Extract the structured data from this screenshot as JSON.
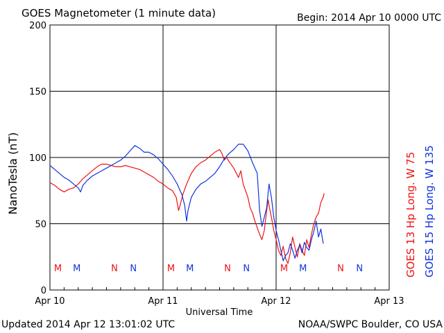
{
  "header": {
    "title": "GOES Magnetometer (1 minute data)",
    "begin": "Begin:  2014 Apr 10 0000 UTC"
  },
  "footer": {
    "updated": "Updated 2014 Apr 12 13:01:02 UTC",
    "credit": "NOAA/SWPC Boulder, CO USA"
  },
  "colors": {
    "goes13": "#ee1111",
    "goes15": "#1133dd",
    "grid": "#000000"
  },
  "chart_data": {
    "type": "line",
    "ylabel": "NanoTesla (nT)",
    "xlabel": "Universal Time",
    "ylim": [
      0,
      200
    ],
    "yticks": [
      0,
      50,
      100,
      150,
      200
    ],
    "xlim": [
      0,
      72
    ],
    "xticks": [
      {
        "x": 0,
        "label": "Apr 10"
      },
      {
        "x": 24,
        "label": "Apr 11"
      },
      {
        "x": 48,
        "label": "Apr 12"
      },
      {
        "x": 72,
        "label": "Apr 13"
      }
    ],
    "grid": true,
    "legend": "right-vertical",
    "series": [
      {
        "name": "GOES 13 Hp",
        "suffix": "Long. W 75",
        "color": "#ee1111",
        "points": [
          [
            0.0,
            81
          ],
          [
            1.0,
            79
          ],
          [
            2.0,
            76
          ],
          [
            3.0,
            74
          ],
          [
            4.0,
            76
          ],
          [
            5.0,
            77
          ],
          [
            6.0,
            80
          ],
          [
            7.0,
            84
          ],
          [
            8.0,
            87
          ],
          [
            9.0,
            90
          ],
          [
            10.0,
            93
          ],
          [
            11.0,
            95
          ],
          [
            12.0,
            95
          ],
          [
            13.0,
            94
          ],
          [
            14.0,
            93
          ],
          [
            15.0,
            93
          ],
          [
            16.0,
            94
          ],
          [
            17.0,
            93
          ],
          [
            18.0,
            92
          ],
          [
            19.0,
            91
          ],
          [
            20.0,
            89
          ],
          [
            21.0,
            87
          ],
          [
            22.0,
            85
          ],
          [
            23.0,
            82
          ],
          [
            24.0,
            80
          ],
          [
            25.0,
            77
          ],
          [
            26.0,
            75
          ],
          [
            26.8,
            70
          ],
          [
            27.3,
            60
          ],
          [
            27.7,
            65
          ],
          [
            28.2,
            72
          ],
          [
            29.0,
            80
          ],
          [
            30.0,
            88
          ],
          [
            31.0,
            93
          ],
          [
            32.0,
            96
          ],
          [
            33.0,
            98
          ],
          [
            34.0,
            101
          ],
          [
            35.0,
            104
          ],
          [
            36.0,
            106
          ],
          [
            36.5,
            103
          ],
          [
            37.0,
            98
          ],
          [
            37.5,
            100
          ],
          [
            38.0,
            97
          ],
          [
            39.0,
            92
          ],
          [
            40.0,
            85
          ],
          [
            40.5,
            90
          ],
          [
            41.0,
            80
          ],
          [
            42.0,
            70
          ],
          [
            42.5,
            62
          ],
          [
            43.0,
            58
          ],
          [
            43.5,
            52
          ],
          [
            44.0,
            47
          ],
          [
            44.5,
            42
          ],
          [
            45.0,
            38
          ],
          [
            45.5,
            45
          ],
          [
            46.0,
            60
          ],
          [
            46.3,
            68
          ],
          [
            46.6,
            62
          ],
          [
            47.0,
            55
          ],
          [
            47.5,
            45
          ],
          [
            48.0,
            38
          ],
          [
            48.5,
            30
          ],
          [
            49.0,
            26
          ],
          [
            49.5,
            33
          ],
          [
            50.0,
            24
          ],
          [
            50.5,
            20
          ],
          [
            51.0,
            28
          ],
          [
            51.5,
            40
          ],
          [
            52.0,
            32
          ],
          [
            52.5,
            25
          ],
          [
            53.0,
            35
          ],
          [
            53.5,
            30
          ],
          [
            54.0,
            26
          ],
          [
            54.5,
            38
          ],
          [
            55.0,
            32
          ],
          [
            55.5,
            42
          ],
          [
            56.0,
            50
          ],
          [
            56.5,
            55
          ],
          [
            57.0,
            58
          ],
          [
            57.5,
            66
          ],
          [
            58.0,
            70
          ],
          [
            58.2,
            73
          ]
        ]
      },
      {
        "name": "GOES 15 Hp",
        "suffix": "Long. W 135",
        "color": "#1133dd",
        "points": [
          [
            0.0,
            94
          ],
          [
            1.0,
            91
          ],
          [
            2.0,
            88
          ],
          [
            3.0,
            85
          ],
          [
            4.0,
            83
          ],
          [
            5.0,
            80
          ],
          [
            6.0,
            77
          ],
          [
            6.5,
            74
          ],
          [
            7.0,
            79
          ],
          [
            8.0,
            83
          ],
          [
            9.0,
            86
          ],
          [
            10.0,
            88
          ],
          [
            11.0,
            90
          ],
          [
            12.0,
            92
          ],
          [
            13.0,
            94
          ],
          [
            14.0,
            96
          ],
          [
            15.0,
            98
          ],
          [
            16.0,
            101
          ],
          [
            17.0,
            105
          ],
          [
            18.0,
            109
          ],
          [
            19.0,
            107
          ],
          [
            20.0,
            104
          ],
          [
            21.0,
            104
          ],
          [
            22.0,
            102
          ],
          [
            23.0,
            99
          ],
          [
            24.0,
            95
          ],
          [
            25.0,
            91
          ],
          [
            26.0,
            86
          ],
          [
            27.0,
            80
          ],
          [
            28.0,
            72
          ],
          [
            28.6,
            64
          ],
          [
            29.0,
            52
          ],
          [
            29.3,
            60
          ],
          [
            30.0,
            70
          ],
          [
            31.0,
            76
          ],
          [
            32.0,
            80
          ],
          [
            33.0,
            82
          ],
          [
            34.0,
            85
          ],
          [
            35.0,
            88
          ],
          [
            36.0,
            93
          ],
          [
            37.0,
            99
          ],
          [
            38.0,
            103
          ],
          [
            39.0,
            106
          ],
          [
            40.0,
            110
          ],
          [
            41.0,
            110
          ],
          [
            42.0,
            105
          ],
          [
            43.0,
            96
          ],
          [
            44.0,
            88
          ],
          [
            44.5,
            60
          ],
          [
            45.0,
            48
          ],
          [
            45.5,
            55
          ],
          [
            46.0,
            62
          ],
          [
            46.5,
            80
          ],
          [
            47.0,
            70
          ],
          [
            47.5,
            55
          ],
          [
            48.0,
            45
          ],
          [
            48.5,
            38
          ],
          [
            49.0,
            30
          ],
          [
            49.5,
            22
          ],
          [
            50.0,
            26
          ],
          [
            50.5,
            28
          ],
          [
            51.0,
            35
          ],
          [
            51.5,
            30
          ],
          [
            52.0,
            24
          ],
          [
            52.5,
            30
          ],
          [
            53.0,
            34
          ],
          [
            53.5,
            28
          ],
          [
            54.0,
            36
          ],
          [
            54.5,
            32
          ],
          [
            55.0,
            30
          ],
          [
            55.5,
            38
          ],
          [
            56.0,
            44
          ],
          [
            56.5,
            52
          ],
          [
            57.0,
            40
          ],
          [
            57.5,
            46
          ],
          [
            58.0,
            35
          ]
        ]
      }
    ],
    "annotations": [
      {
        "x": 1.7,
        "text": "M",
        "series": 0
      },
      {
        "x": 5.7,
        "text": "M",
        "series": 1
      },
      {
        "x": 13.7,
        "text": "N",
        "series": 0
      },
      {
        "x": 17.7,
        "text": "N",
        "series": 1
      },
      {
        "x": 25.7,
        "text": "M",
        "series": 0
      },
      {
        "x": 29.7,
        "text": "M",
        "series": 1
      },
      {
        "x": 37.7,
        "text": "N",
        "series": 0
      },
      {
        "x": 41.7,
        "text": "N",
        "series": 1
      },
      {
        "x": 49.7,
        "text": "M",
        "series": 0
      },
      {
        "x": 53.7,
        "text": "M",
        "series": 1
      },
      {
        "x": 61.7,
        "text": "N",
        "series": 0
      },
      {
        "x": 65.7,
        "text": "N",
        "series": 1
      }
    ]
  }
}
